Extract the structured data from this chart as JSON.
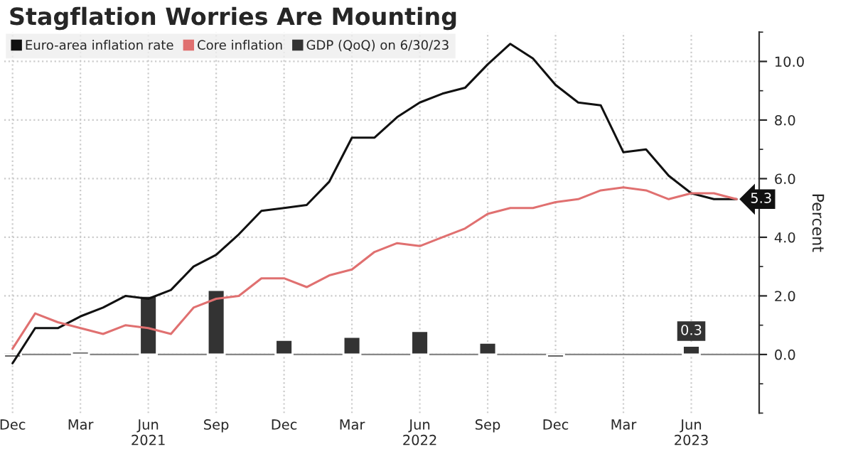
{
  "chart_data": {
    "type": "line",
    "title": "Stagflation Worries Are Mounting",
    "ylabel": "Percent",
    "x": [
      "2020-12",
      "2021-01",
      "2021-02",
      "2021-03",
      "2021-04",
      "2021-05",
      "2021-06",
      "2021-07",
      "2021-08",
      "2021-09",
      "2021-10",
      "2021-11",
      "2021-12",
      "2022-01",
      "2022-02",
      "2022-03",
      "2022-04",
      "2022-05",
      "2022-06",
      "2022-07",
      "2022-08",
      "2022-09",
      "2022-10",
      "2022-11",
      "2022-12",
      "2023-01",
      "2023-02",
      "2023-03",
      "2023-04",
      "2023-05",
      "2023-06",
      "2023-07",
      "2023-08"
    ],
    "series": [
      {
        "name": "Euro-area inflation rate",
        "color": "#111111",
        "values": [
          -0.3,
          0.9,
          0.9,
          1.3,
          1.6,
          2.0,
          1.9,
          2.2,
          3.0,
          3.4,
          4.1,
          4.9,
          5.0,
          5.1,
          5.9,
          7.4,
          7.4,
          8.1,
          8.6,
          8.9,
          9.1,
          9.9,
          10.6,
          10.1,
          9.2,
          8.6,
          8.5,
          6.9,
          7.0,
          6.1,
          5.5,
          5.3,
          5.3
        ],
        "value_labels": [
          null,
          null,
          null,
          null,
          null,
          null,
          null,
          null,
          null,
          null,
          null,
          null,
          null,
          null,
          null,
          null,
          null,
          null,
          null,
          null,
          null,
          null,
          null,
          null,
          null,
          null,
          null,
          null,
          null,
          null,
          null,
          null,
          "5.3"
        ]
      },
      {
        "name": "Core inflation",
        "color": "#e07070",
        "values": [
          0.2,
          1.4,
          1.1,
          0.9,
          0.7,
          1.0,
          0.9,
          0.7,
          1.6,
          1.9,
          2.0,
          2.6,
          2.6,
          2.3,
          2.7,
          2.9,
          3.5,
          3.8,
          3.7,
          4.0,
          4.3,
          4.8,
          5.0,
          5.0,
          5.2,
          5.3,
          5.6,
          5.7,
          5.6,
          5.3,
          5.5,
          5.5,
          5.3
        ]
      },
      {
        "name": "GDP (QoQ) on 6/30/23",
        "type": "bar",
        "color": "#333333",
        "x": [
          "2020-12",
          "2021-03",
          "2021-06",
          "2021-09",
          "2021-12",
          "2022-03",
          "2022-06",
          "2022-09",
          "2022-12",
          "2023-03",
          "2023-06"
        ],
        "values": [
          -0.1,
          0.1,
          2.0,
          2.2,
          0.5,
          0.6,
          0.8,
          0.4,
          -0.1,
          null,
          0.3
        ],
        "value_labels": [
          null,
          null,
          null,
          null,
          null,
          null,
          null,
          null,
          null,
          null,
          "0.3"
        ]
      }
    ],
    "xlim": [
      "2020-11-20",
      "2023-09"
    ],
    "xticks": [
      {
        "value": "2020-12",
        "label": "Dec"
      },
      {
        "value": "2021-03",
        "label": "Mar"
      },
      {
        "value": "2021-06",
        "label": "Jun\n2021"
      },
      {
        "value": "2021-09",
        "label": "Sep"
      },
      {
        "value": "2021-12",
        "label": "Dec"
      },
      {
        "value": "2022-03",
        "label": "Mar"
      },
      {
        "value": "2022-06",
        "label": "Jun\n2022"
      },
      {
        "value": "2022-09",
        "label": "Sep"
      },
      {
        "value": "2022-12",
        "label": "Dec"
      },
      {
        "value": "2023-03",
        "label": "Mar"
      },
      {
        "value": "2023-06",
        "label": "Jun\n2023"
      }
    ],
    "ylim": [
      -2,
      11
    ],
    "yticks": [
      {
        "value": -2,
        "label": null
      },
      {
        "value": -1,
        "label": null
      },
      {
        "value": 0,
        "label": "0.0"
      },
      {
        "value": 1,
        "label": null
      },
      {
        "value": 2,
        "label": "2.0"
      },
      {
        "value": 3,
        "label": null
      },
      {
        "value": 4,
        "label": "4.0"
      },
      {
        "value": 5,
        "label": null
      },
      {
        "value": 6,
        "label": "6.0"
      },
      {
        "value": 7,
        "label": null
      },
      {
        "value": 8,
        "label": "8.0"
      },
      {
        "value": 9,
        "label": null
      },
      {
        "value": 10,
        "label": "10.0"
      },
      {
        "value": 11,
        "label": null
      }
    ],
    "grid": true,
    "legend": "top left",
    "marker": "none",
    "line_style": "solid"
  }
}
